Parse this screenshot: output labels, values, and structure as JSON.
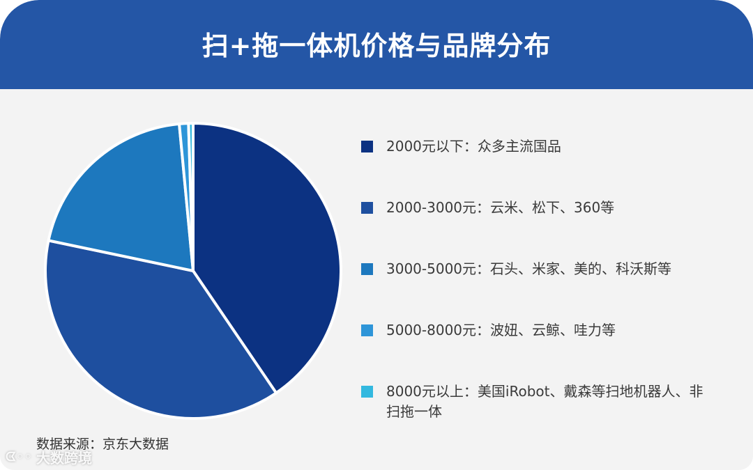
{
  "title": "扫+拖一体机价格与品牌分布",
  "source": "数据来源：京东大数据",
  "watermark": {
    "icon": "logo-icon",
    "text": "大数跨境"
  },
  "chart_data": {
    "type": "pie",
    "title": "扫+拖一体机价格与品牌分布",
    "legend_position": "right",
    "slices": [
      {
        "label": "2000元以下：众多主流国品",
        "value": 40.5,
        "color": "#0c3282"
      },
      {
        "label": "2000-3000元：云米、松下、360等",
        "value": 37.8,
        "color": "#1e4f9f"
      },
      {
        "label": "3000-5000元：石头、米家、美的、科沃斯等",
        "value": 20.2,
        "color": "#1d78be"
      },
      {
        "label": "5000-8000元：波妞、云鲸、哇力等",
        "value": 1.0,
        "color": "#2e95d8"
      },
      {
        "label": "8000元以上：美国iRobot、戴森等扫地机器人、非扫拖一体",
        "value": 0.5,
        "color": "#33b8df"
      }
    ]
  }
}
